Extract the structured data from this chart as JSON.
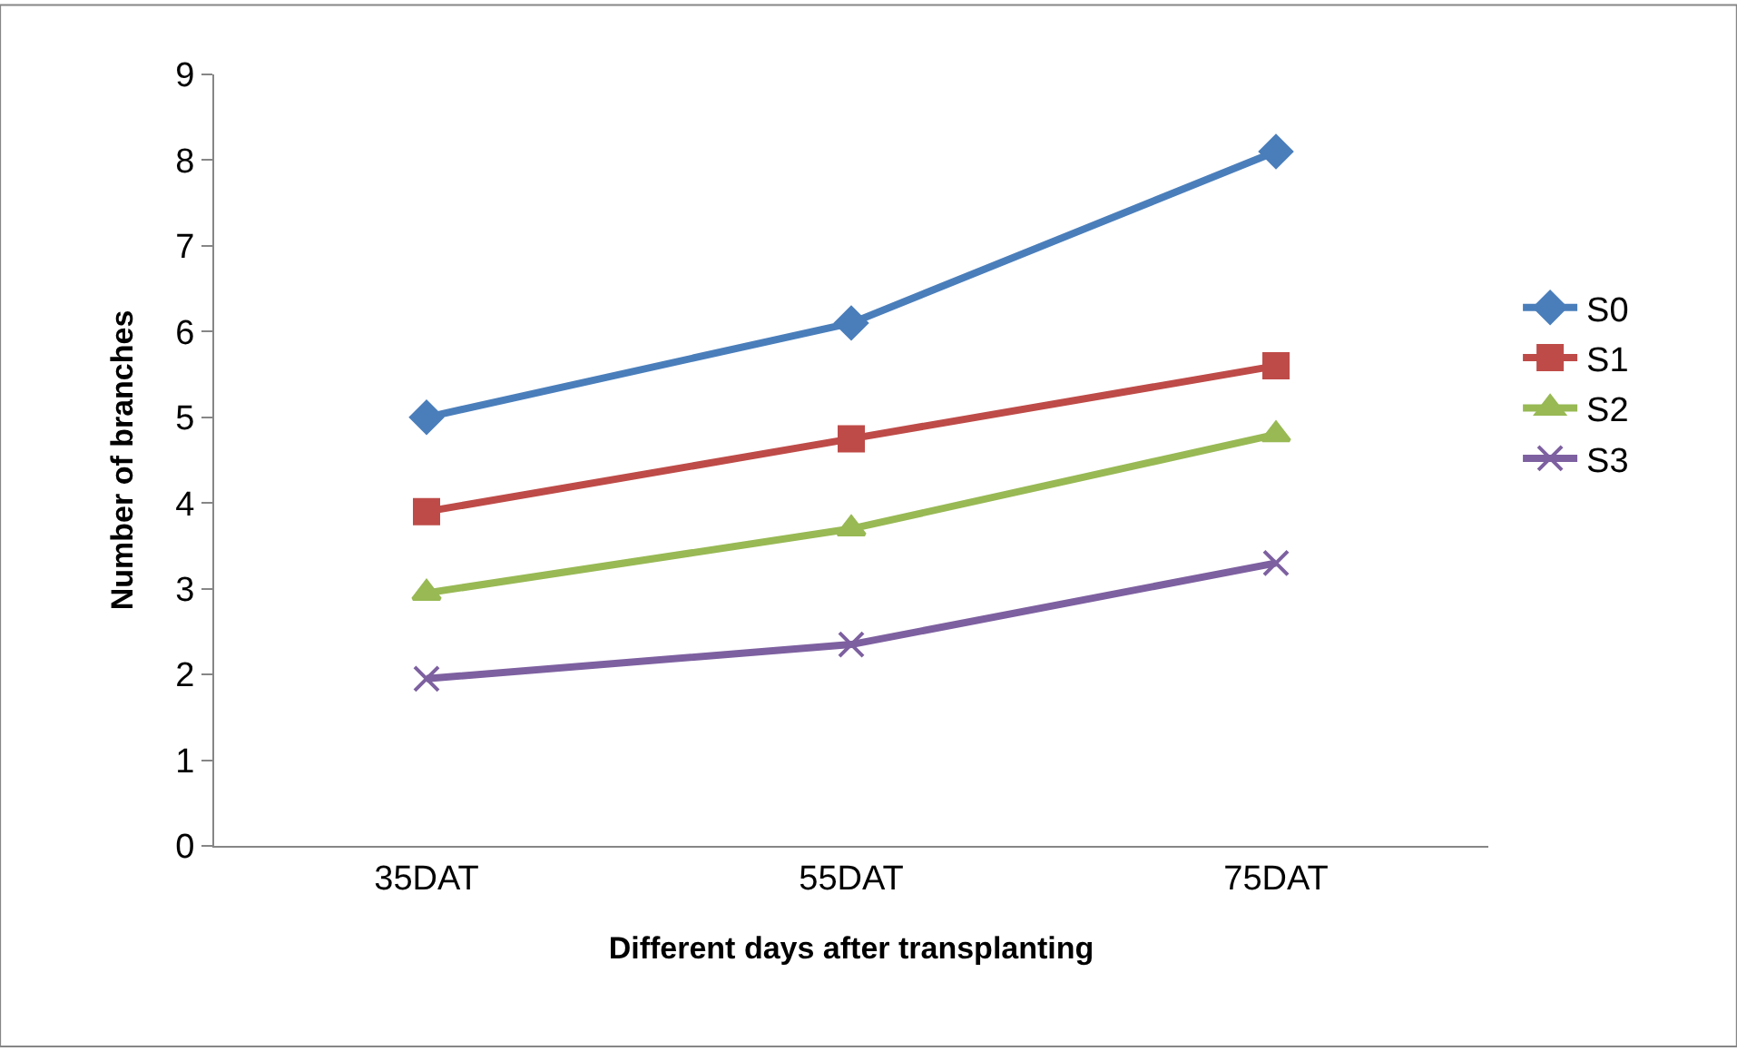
{
  "chart_data": {
    "type": "line",
    "xlabel": "Different days after transplanting",
    "ylabel": "Number of branches",
    "categories": [
      "35DAT",
      "55DAT",
      "75DAT"
    ],
    "series": [
      {
        "name": "S0",
        "color": "#4a7ebb",
        "marker": "diamond",
        "values": [
          5.0,
          6.1,
          8.1
        ]
      },
      {
        "name": "S1",
        "color": "#be4b48",
        "marker": "square",
        "values": [
          3.9,
          4.75,
          5.6
        ]
      },
      {
        "name": "S2",
        "color": "#98b954",
        "marker": "triangle",
        "values": [
          2.95,
          3.7,
          4.8
        ]
      },
      {
        "name": "S3",
        "color": "#7d60a0",
        "marker": "cross",
        "values": [
          1.95,
          2.35,
          3.3
        ]
      }
    ],
    "ylim": [
      0,
      9
    ],
    "yticks": [
      0,
      1,
      2,
      3,
      4,
      5,
      6,
      7,
      8,
      9
    ],
    "grid": false,
    "legend": "right",
    "line_style": "solid"
  }
}
